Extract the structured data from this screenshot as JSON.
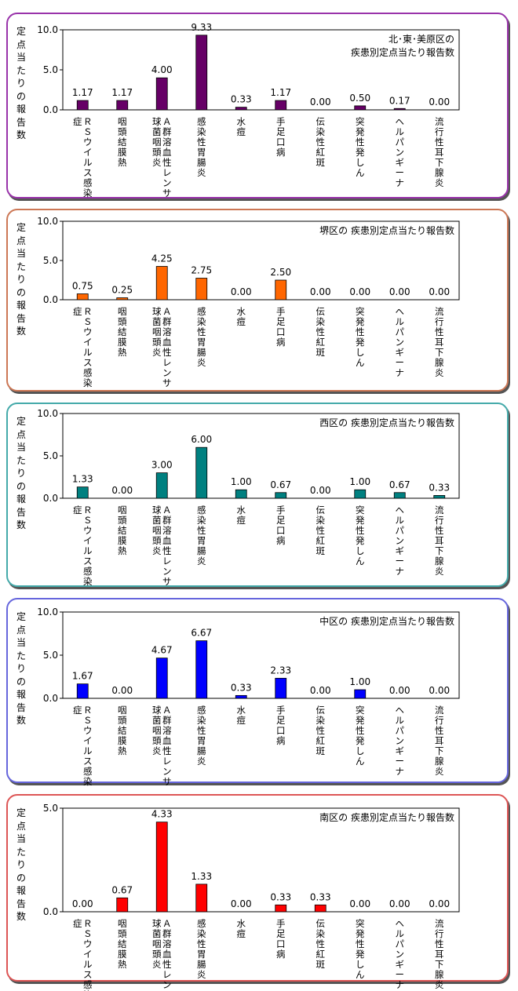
{
  "chart_data": [
    {
      "type": "bar",
      "title_lines": [
        "北･東･美原区の",
        "疾患別定点当たり報告数"
      ],
      "ylabel": "定点当たりの報告数",
      "ylim": [
        0,
        10
      ],
      "yticks": [
        "0.0",
        "5.0",
        "10.0"
      ],
      "color": "#660066",
      "border_color": "#9933aa",
      "categories": [
        "ＲＳウイルス感染症",
        "咽頭結膜熱",
        "Ａ群溶血性レンサ球菌咽頭炎",
        "感染性胃腸炎",
        "水痘",
        "手足口病",
        "伝染性紅斑",
        "突発性発しん",
        "ヘルパンギーナ",
        "流行性耳下腺炎"
      ],
      "values": [
        1.17,
        1.17,
        4.0,
        9.33,
        0.33,
        1.17,
        0.0,
        0.5,
        0.17,
        0.0
      ],
      "labels": [
        "1.17",
        "1.17",
        "4.00",
        "9.33",
        "0.33",
        "1.17",
        "0.00",
        "0.50",
        "0.17",
        "0.00"
      ]
    },
    {
      "type": "bar",
      "title_lines": [
        "堺区の 疾患別定点当たり報告数"
      ],
      "ylabel": "定点当たりの報告数",
      "ylim": [
        0,
        10
      ],
      "yticks": [
        "0.0",
        "5.0",
        "10.0"
      ],
      "color": "#ff6600",
      "border_color": "#cc7755",
      "categories": [
        "ＲＳウイルス感染症",
        "咽頭結膜熱",
        "Ａ群溶血性レンサ球菌咽頭炎",
        "感染性胃腸炎",
        "水痘",
        "手足口病",
        "伝染性紅斑",
        "突発性発しん",
        "ヘルパンギーナ",
        "流行性耳下腺炎"
      ],
      "values": [
        0.75,
        0.25,
        4.25,
        2.75,
        0.0,
        2.5,
        0.0,
        0.0,
        0.0,
        0.0
      ],
      "labels": [
        "0.75",
        "0.25",
        "4.25",
        "2.75",
        "0.00",
        "2.50",
        "0.00",
        "0.00",
        "0.00",
        "0.00"
      ]
    },
    {
      "type": "bar",
      "title_lines": [
        "西区の 疾患別定点当たり報告数"
      ],
      "ylabel": "定点当たりの報告数",
      "ylim": [
        0,
        10
      ],
      "yticks": [
        "0.0",
        "5.0",
        "10.0"
      ],
      "color": "#008080",
      "border_color": "#44aaaa",
      "categories": [
        "ＲＳウイルス感染症",
        "咽頭結膜熱",
        "Ａ群溶血性レンサ球菌咽頭炎",
        "感染性胃腸炎",
        "水痘",
        "手足口病",
        "伝染性紅斑",
        "突発性発しん",
        "ヘルパンギーナ",
        "流行性耳下腺炎"
      ],
      "values": [
        1.33,
        0.0,
        3.0,
        6.0,
        1.0,
        0.67,
        0.0,
        1.0,
        0.67,
        0.33
      ],
      "labels": [
        "1.33",
        "0.00",
        "3.00",
        "6.00",
        "1.00",
        "0.67",
        "0.00",
        "1.00",
        "0.67",
        "0.33"
      ]
    },
    {
      "type": "bar",
      "title_lines": [
        "中区の 疾患別定点当たり報告数"
      ],
      "ylabel": "定点当たりの報告数",
      "ylim": [
        0,
        10
      ],
      "yticks": [
        "0.0",
        "5.0",
        "10.0"
      ],
      "color": "#0000ff",
      "border_color": "#6666dd",
      "categories": [
        "ＲＳウイルス感染症",
        "咽頭結膜熱",
        "Ａ群溶血性レンサ球菌咽頭炎",
        "感染性胃腸炎",
        "水痘",
        "手足口病",
        "伝染性紅斑",
        "突発性発しん",
        "ヘルパンギーナ",
        "流行性耳下腺炎"
      ],
      "values": [
        1.67,
        0.0,
        4.67,
        6.67,
        0.33,
        2.33,
        0.0,
        1.0,
        0.0,
        0.0
      ],
      "labels": [
        "1.67",
        "0.00",
        "4.67",
        "6.67",
        "0.33",
        "2.33",
        "0.00",
        "1.00",
        "0.00",
        "0.00"
      ]
    },
    {
      "type": "bar",
      "title_lines": [
        "南区の 疾患別定点当たり報告数"
      ],
      "ylabel": "定点当たりの報告数",
      "ylim": [
        0,
        5
      ],
      "yticks": [
        "0.0",
        "5.0"
      ],
      "color": "#ff0000",
      "border_color": "#dd5555",
      "categories": [
        "ＲＳウイルス感染症",
        "咽頭結膜熱",
        "Ａ群溶血性レンサ球菌咽頭炎",
        "感染性胃腸炎",
        "水痘",
        "手足口病",
        "伝染性紅斑",
        "突発性発しん",
        "ヘルパンギーナ",
        "流行性耳下腺炎"
      ],
      "values": [
        0.0,
        0.67,
        4.33,
        1.33,
        0.0,
        0.33,
        0.33,
        0.0,
        0.0,
        0.0
      ],
      "labels": [
        "0.00",
        "0.67",
        "4.33",
        "1.33",
        "0.00",
        "0.33",
        "0.33",
        "0.00",
        "0.00",
        "0.00"
      ]
    }
  ]
}
